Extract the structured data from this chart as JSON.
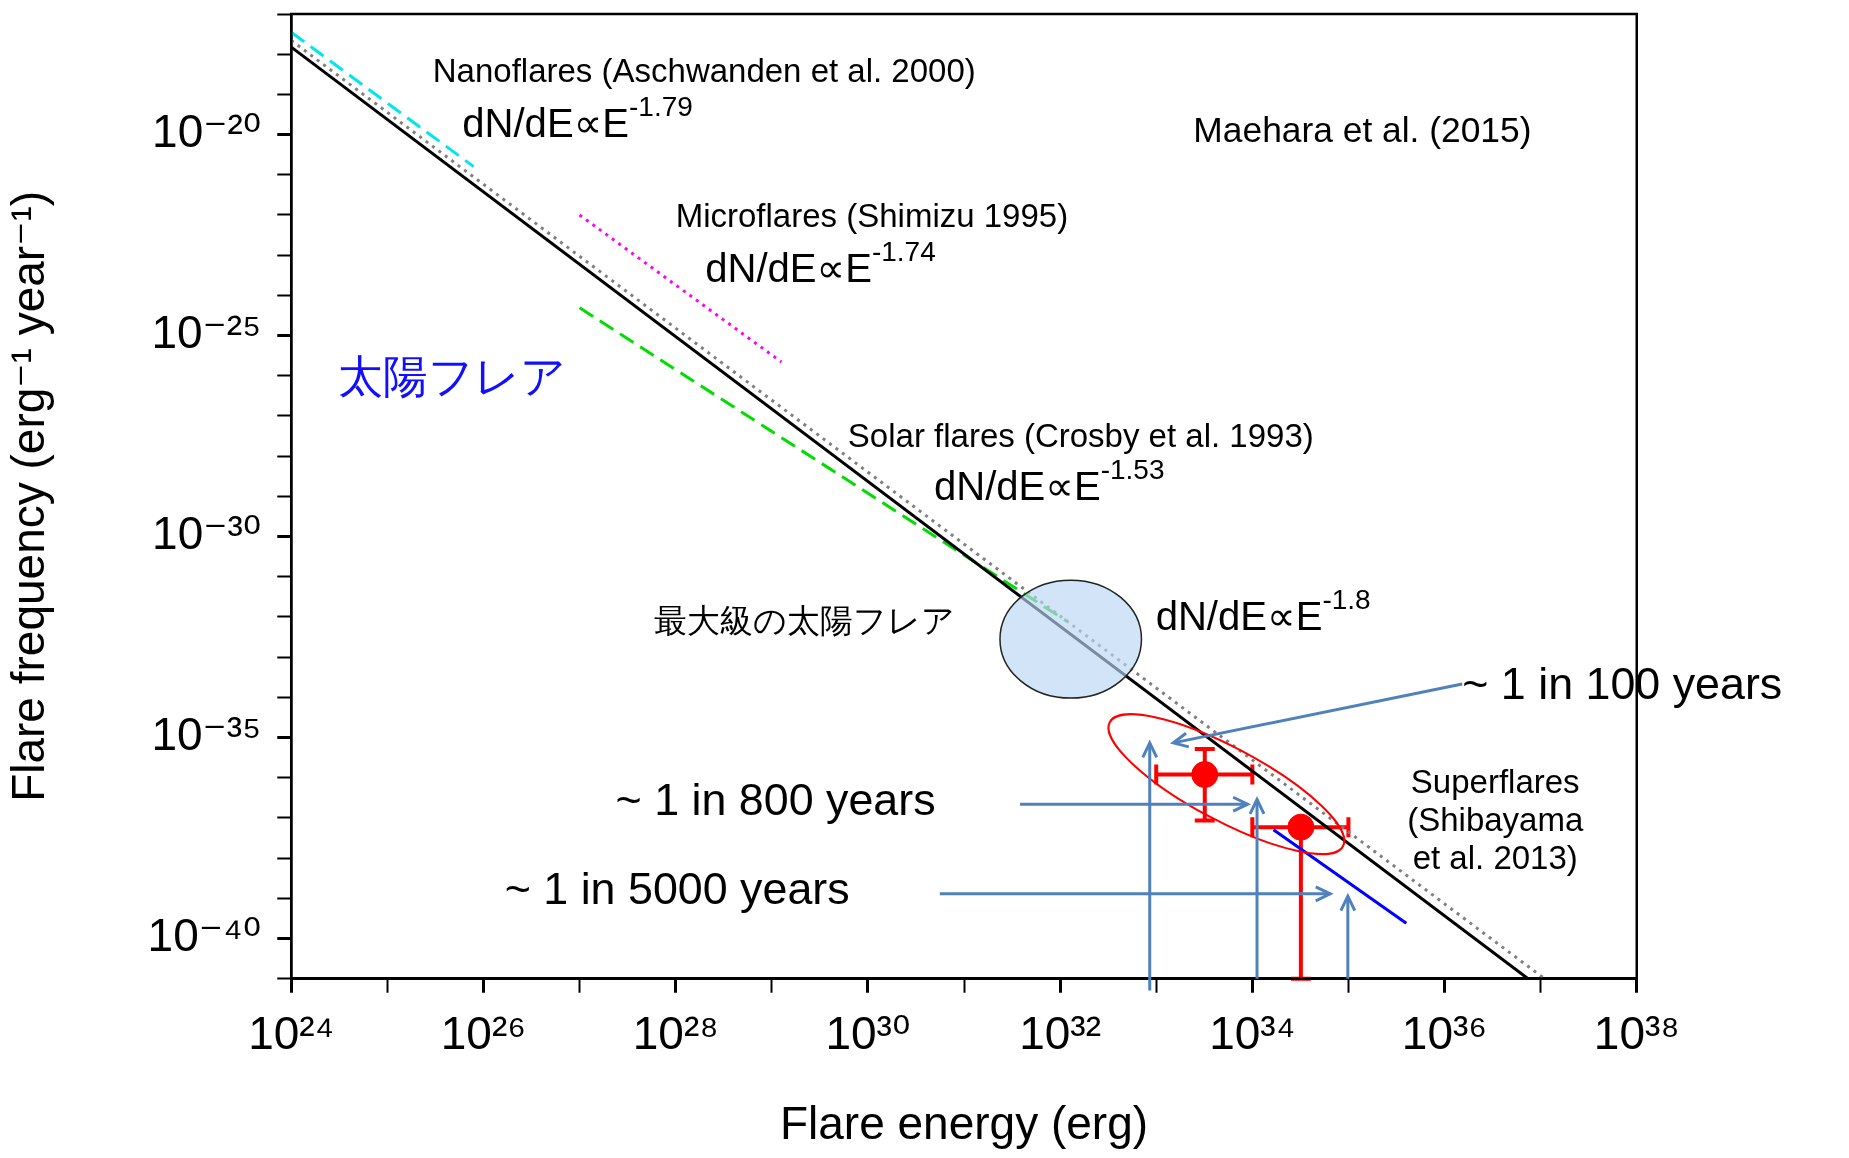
{
  "chart_data": {
    "type": "line",
    "xlabel": "Flare energy (erg)",
    "ylabel": "Flare frequency (erg⁻¹ year⁻¹)",
    "log": "xy",
    "xlim": [
      1e+24,
      1e+38
    ],
    "ylim": [
      1e-41,
      1e-17
    ],
    "xticks": [
      {
        "value": 1e+24,
        "label": "10²⁴"
      },
      {
        "value": 1e+25,
        "label": null
      },
      {
        "value": 1e+26,
        "label": "10²⁶"
      },
      {
        "value": 1e+27,
        "label": null
      },
      {
        "value": 1e+28,
        "label": "10²⁸"
      },
      {
        "value": 1e+29,
        "label": null
      },
      {
        "value": 1e+30,
        "label": "10³⁰"
      },
      {
        "value": 1e+31,
        "label": null
      },
      {
        "value": 1e+32,
        "label": "10³²"
      },
      {
        "value": 1e+33,
        "label": null
      },
      {
        "value": 1e+34,
        "label": "10³⁴"
      },
      {
        "value": 1e+35,
        "label": null
      },
      {
        "value": 1e+36,
        "label": "10³⁶"
      },
      {
        "value": 1e+37,
        "label": null
      },
      {
        "value": 1e+38,
        "label": "10³⁸"
      }
    ],
    "yticks": [
      {
        "value": 1e-41,
        "label": null
      },
      {
        "value": 1e-40,
        "label": "10⁻⁴⁰"
      },
      {
        "value": 1e-39,
        "label": null
      },
      {
        "value": 1e-38,
        "label": null
      },
      {
        "value": 1e-37,
        "label": null
      },
      {
        "value": 1e-36,
        "label": null
      },
      {
        "value": 1e-35,
        "label": "10⁻³⁵"
      },
      {
        "value": 1e-34,
        "label": null
      },
      {
        "value": 1e-33,
        "label": null
      },
      {
        "value": 1e-32,
        "label": null
      },
      {
        "value": 1e-31,
        "label": null
      },
      {
        "value": 1e-30,
        "label": "10⁻³⁰"
      },
      {
        "value": 1e-29,
        "label": null
      },
      {
        "value": 1e-28,
        "label": null
      },
      {
        "value": 1e-27,
        "label": null
      },
      {
        "value": 1e-26,
        "label": null
      },
      {
        "value": 1e-25,
        "label": "10⁻²⁵"
      },
      {
        "value": 1e-24,
        "label": null
      },
      {
        "value": 1e-23,
        "label": null
      },
      {
        "value": 1e-22,
        "label": null
      },
      {
        "value": 1e-21,
        "label": null
      },
      {
        "value": 1e-20,
        "label": "10⁻²⁰"
      },
      {
        "value": 1e-19,
        "label": null
      },
      {
        "value": 1e-18,
        "label": null
      },
      {
        "value": 1e-17,
        "label": null
      }
    ],
    "grid": false,
    "legend": false,
    "marker": "none",
    "series": [
      {
        "color": "#808080",
        "line_style": "dotted",
        "x": [
          1e+24,
          1.1e+37
        ],
        "values": [
          2.2e-18,
          1e-41
        ]
      },
      {
        "color": "#000000",
        "line_style": "solid",
        "x": [
          1e+24,
          7.4e+36
        ],
        "values": [
          1.5e-18,
          1e-41
        ]
      },
      {
        "color": "#00e5ee",
        "line_style": "dashed",
        "x": [
          1e+24,
          7.9e+25
        ],
        "values": [
          3.5e-18,
          1.6e-21
        ]
      },
      {
        "color": "#ff00ff",
        "line_style": "dotted",
        "x": [
          1e+27,
          1.26e+29
        ],
        "values": [
          1e-22,
          2.2e-26
        ]
      },
      {
        "color": "#00dd00",
        "line_style": "dashed",
        "x": [
          1e+27,
          1.17e+32
        ],
        "values": [
          4.9e-25,
          7.9e-33
        ]
      },
      {
        "color": "#0000ff",
        "line_style": "solid",
        "x": [
          1.66e+34,
          4e+35
        ],
        "values": [
          5.1e-38,
          2.4e-40
        ]
      },
      {
        "type": "scatter",
        "marker": "circle",
        "color": "#ff0000",
        "x": [
          3.2e+33,
          3.2e+34
        ],
        "values": [
          1.2e-36,
          5.9e-38
        ],
        "errors": [
          [
            8.7e-38,
            5.2e-36
          ],
          [
            1e-41,
            5.9e-38
          ]
        ],
        "xerrors": [
          [
            1e+33,
            1e+34
          ],
          [
            1e+34,
            1e+35
          ]
        ]
      }
    ],
    "annotations": [
      "Nanoflares (Aschwanden et al. 2000)",
      "dN/dE∝E$^{-1.79}$",
      "Microflares (Shimizu 1995)",
      "dN/dE∝E$^{-1.74}$",
      "Solar flares (Crosby et al. 1993)",
      "dN/dE∝E$^{-1.53}$",
      "Maehara et al. (2015)",
      "太陽フレア",
      "最大級の太陽フレア",
      "dN/dE∝E$^{-1.8}$",
      "~ 1 in 100 years",
      "~ 1 in 800 years",
      "~ 1 in 5000 years",
      "Superflares\n(Shibayama\net al. 2013)"
    ]
  }
}
